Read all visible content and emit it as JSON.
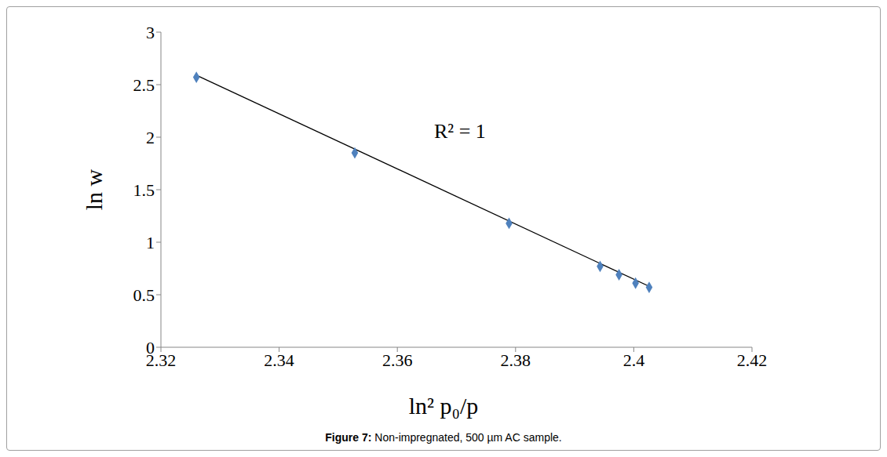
{
  "chart_data": {
    "type": "scatter",
    "title": "Figure 7: Non-impregnated, 500 µm AC sample.",
    "x_label": "ln² p₀/p",
    "y_label": "ln w",
    "annotations": [
      "R² = 1"
    ],
    "x": [
      2.326,
      2.3528,
      2.3789,
      2.3943,
      2.3975,
      2.4003,
      2.4026
    ],
    "values": [
      2.57,
      1.85,
      1.18,
      0.77,
      0.69,
      0.61,
      0.57
    ],
    "color": "#4f81bd",
    "marker": "diamond",
    "trendline": {
      "x": [
        2.326,
        2.4026
      ],
      "values": [
        2.59,
        0.58
      ],
      "color": "#000000",
      "line_style": "solid"
    },
    "xlim": [
      2.32,
      2.42
    ],
    "xticks": [
      2.32,
      2.34,
      2.36,
      2.38,
      2.4,
      2.42
    ],
    "ylim": [
      0,
      3
    ],
    "yticks": [
      0,
      0.5,
      1,
      1.5,
      2,
      2.5,
      3
    ],
    "grid": false
  }
}
